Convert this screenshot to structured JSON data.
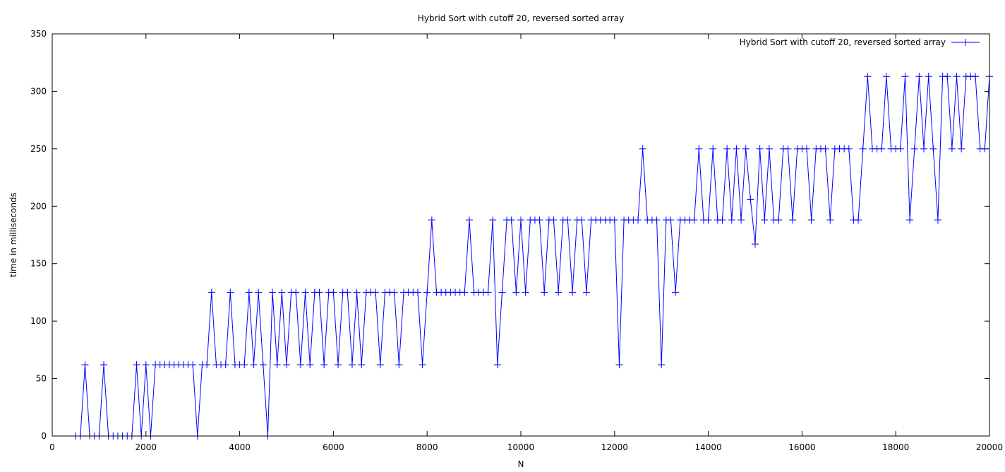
{
  "chart_data": {
    "type": "line",
    "title": "Hybrid Sort with cutoff 20, reversed sorted array",
    "xlabel": "N",
    "ylabel": "time in milliseconds",
    "xlim": [
      0,
      20000
    ],
    "ylim": [
      0,
      350
    ],
    "xticks": [
      0,
      2000,
      4000,
      6000,
      8000,
      10000,
      12000,
      14000,
      16000,
      18000,
      20000
    ],
    "yticks": [
      0,
      50,
      100,
      150,
      200,
      250,
      300,
      350
    ],
    "grid": false,
    "legend_position": "top-right",
    "marker": "+",
    "series": [
      {
        "name": "Hybrid Sort with cutoff 20, reversed sorted array",
        "color": "#0000ff",
        "x": [
          500,
          600,
          700,
          800,
          900,
          1000,
          1100,
          1200,
          1300,
          1400,
          1500,
          1600,
          1700,
          1800,
          1900,
          2000,
          2100,
          2200,
          2300,
          2400,
          2500,
          2600,
          2700,
          2800,
          2900,
          3000,
          3100,
          3200,
          3300,
          3400,
          3500,
          3600,
          3700,
          3800,
          3900,
          4000,
          4100,
          4200,
          4300,
          4400,
          4500,
          4600,
          4700,
          4800,
          4900,
          5000,
          5100,
          5200,
          5300,
          5400,
          5500,
          5600,
          5700,
          5800,
          5900,
          6000,
          6100,
          6200,
          6300,
          6400,
          6500,
          6600,
          6700,
          6800,
          6900,
          7000,
          7100,
          7200,
          7300,
          7400,
          7500,
          7600,
          7700,
          7800,
          7900,
          8000,
          8100,
          8200,
          8300,
          8400,
          8500,
          8600,
          8700,
          8800,
          8900,
          9000,
          9100,
          9200,
          9300,
          9400,
          9500,
          9600,
          9700,
          9800,
          9900,
          10000,
          10100,
          10200,
          10300,
          10400,
          10500,
          10600,
          10700,
          10800,
          10900,
          11000,
          11100,
          11200,
          11300,
          11400,
          11500,
          11600,
          11700,
          11800,
          11900,
          12000,
          12100,
          12200,
          12300,
          12400,
          12500,
          12600,
          12700,
          12800,
          12900,
          13000,
          13100,
          13200,
          13300,
          13400,
          13500,
          13600,
          13700,
          13800,
          13900,
          14000,
          14100,
          14200,
          14300,
          14400,
          14500,
          14600,
          14700,
          14800,
          14900,
          15000,
          15100,
          15200,
          15300,
          15400,
          15500,
          15600,
          15700,
          15800,
          15900,
          16000,
          16100,
          16200,
          16300,
          16400,
          16500,
          16600,
          16700,
          16800,
          16900,
          17000,
          17100,
          17200,
          17300,
          17400,
          17500,
          17600,
          17700,
          17800,
          17900,
          18000,
          18100,
          18200,
          18300,
          18400,
          18500,
          18600,
          18700,
          18800,
          18900,
          19000,
          19100,
          19200,
          19300,
          19400,
          19500,
          19600,
          19700,
          19800,
          19900,
          20000
        ],
        "y": [
          0,
          0,
          62,
          0,
          0,
          0,
          62,
          0,
          0,
          0,
          0,
          0,
          0,
          62,
          0,
          62,
          0,
          62,
          62,
          62,
          62,
          62,
          62,
          62,
          62,
          62,
          0,
          62,
          62,
          125,
          62,
          62,
          62,
          125,
          62,
          62,
          62,
          125,
          62,
          125,
          62,
          0,
          125,
          62,
          125,
          62,
          125,
          125,
          62,
          125,
          62,
          125,
          125,
          62,
          125,
          125,
          62,
          125,
          125,
          62,
          125,
          62,
          125,
          125,
          125,
          62,
          125,
          125,
          125,
          62,
          125,
          125,
          125,
          125,
          62,
          125,
          188,
          125,
          125,
          125,
          125,
          125,
          125,
          125,
          188,
          125,
          125,
          125,
          125,
          188,
          62,
          125,
          188,
          188,
          125,
          188,
          125,
          188,
          188,
          188,
          125,
          188,
          188,
          125,
          188,
          188,
          125,
          188,
          188,
          125,
          188,
          188,
          188,
          188,
          188,
          188,
          62,
          188,
          188,
          188,
          188,
          250,
          188,
          188,
          188,
          62,
          188,
          188,
          125,
          188,
          188,
          188,
          188,
          250,
          188,
          188,
          250,
          188,
          188,
          250,
          188,
          250,
          188,
          250,
          206,
          167,
          250,
          188,
          250,
          188,
          188,
          250,
          250,
          188,
          250,
          250,
          250,
          188,
          250,
          250,
          250,
          188,
          250,
          250,
          250,
          250,
          188,
          188,
          250,
          313,
          250,
          250,
          250,
          313,
          250,
          250,
          250,
          313,
          188,
          250,
          313,
          250,
          313,
          250,
          188,
          313,
          313,
          250,
          313,
          250,
          313,
          313,
          313,
          250,
          250,
          313
        ]
      }
    ]
  }
}
